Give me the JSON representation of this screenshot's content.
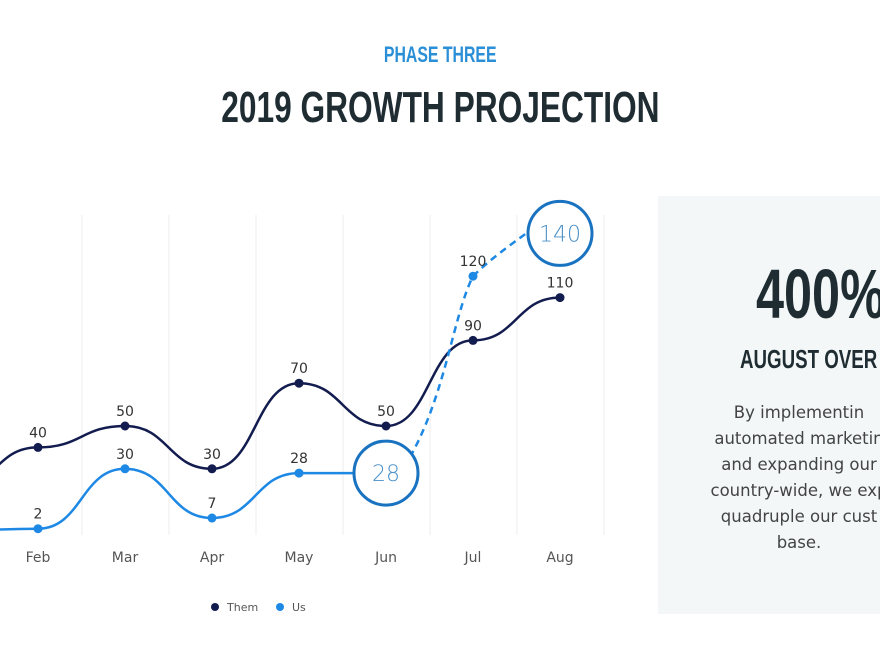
{
  "header": {
    "kicker": "PHASE THREE",
    "title": "2019 GROWTH PROJECTION"
  },
  "panel": {
    "big": "400%",
    "subtitle": "AUGUST OVER JU",
    "body_lines": [
      "By implementin",
      "automated marketin",
      "and expanding our",
      "country-wide, we exp",
      "quadruple our cust",
      "base."
    ]
  },
  "chart_data": {
    "type": "line",
    "categories": [
      "Feb",
      "Mar",
      "Apr",
      "May",
      "Jun",
      "Jul",
      "Aug"
    ],
    "series": [
      {
        "name": "Them",
        "color": "#131c4f",
        "values": [
          40,
          50,
          30,
          70,
          50,
          90,
          110
        ]
      },
      {
        "name": "Us",
        "color": "#1e88e5",
        "values": [
          2,
          30,
          7,
          28,
          28,
          120,
          140
        ],
        "projected_from": "Jun"
      }
    ],
    "data_labels": {
      "Them": [
        "40",
        "50",
        "30",
        "70",
        "50",
        "90",
        "110"
      ],
      "Us": [
        "2",
        "30",
        "7",
        "28",
        "28",
        "120",
        "140"
      ]
    },
    "highlight_circles": [
      "Jun",
      "Aug"
    ],
    "highlight_color": "#1a73c0",
    "grid": "vertical",
    "legend": "bottom-center"
  }
}
